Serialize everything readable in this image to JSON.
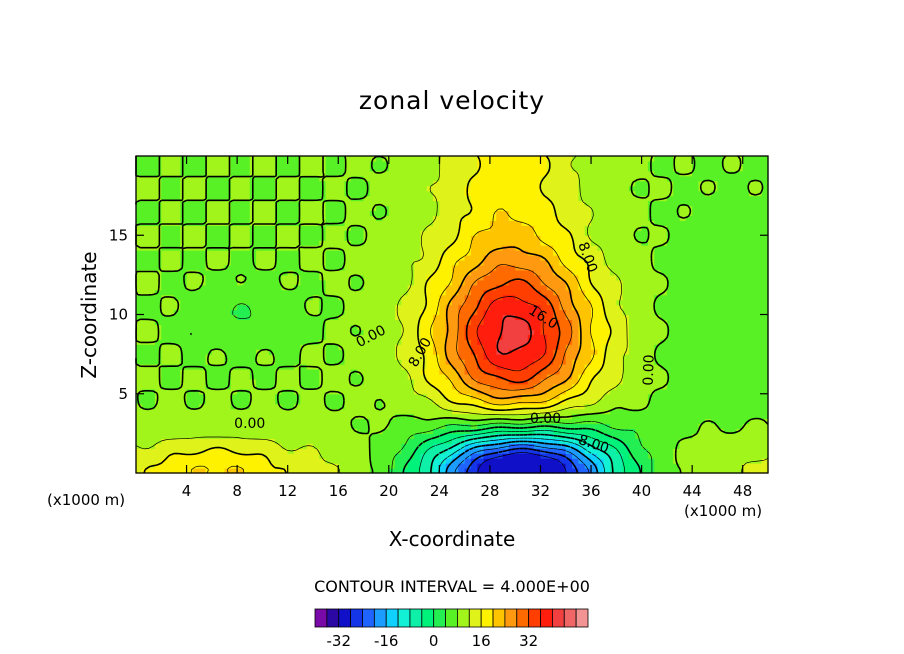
{
  "chart_data": {
    "type": "heatmap",
    "title": "zonal velocity",
    "xlabel": "X-coordinate",
    "ylabel": "Z-coordinate",
    "x_unit_label": "(x1000 m)",
    "xlim": [
      0,
      50
    ],
    "ylim": [
      0,
      20
    ],
    "x_ticks": [
      4,
      8,
      12,
      16,
      20,
      24,
      28,
      32,
      36,
      40,
      44,
      48
    ],
    "x_tick_labels": [
      "4",
      "8",
      "12",
      "16",
      "20",
      "24",
      "28",
      "32",
      "36",
      "40",
      "44",
      "48"
    ],
    "y_ticks": [
      5,
      10,
      15
    ],
    "y_tick_labels": [
      "5",
      "10",
      "15"
    ],
    "contour_interval_text": "CONTOUR INTERVAL = 4.000E+00",
    "contour_labels": [
      {
        "text": "0.00",
        "x": 18.6,
        "z": 8.6,
        "angle": -28
      },
      {
        "text": "8.00",
        "x": 22.5,
        "z": 7.6,
        "angle": -60
      },
      {
        "text": "8.00",
        "x": 35.7,
        "z": 13.6,
        "angle": 70
      },
      {
        "text": "16.0",
        "x": 32.2,
        "z": 9.8,
        "angle": 32
      },
      {
        "text": "0.00",
        "x": 40.6,
        "z": 6.5,
        "angle": -88
      },
      {
        "text": "0.00",
        "x": 9.0,
        "z": 3.1,
        "angle": 0
      },
      {
        "text": "0.00",
        "x": 32.4,
        "z": 3.4,
        "angle": 0
      },
      {
        "text": "8.00",
        "x": 36.2,
        "z": 1.8,
        "angle": 18
      }
    ],
    "colorbar": {
      "levels": [
        -36,
        -32,
        -28,
        -24,
        -20,
        -16,
        -12,
        -8,
        -4,
        0,
        4,
        8,
        12,
        16,
        20,
        24,
        28,
        32,
        36
      ],
      "tick_labels": [
        "-32",
        "-16",
        "0",
        "16",
        "32"
      ],
      "colors": [
        "#7a0aa8",
        "#2b07a4",
        "#1010c8",
        "#1535e8",
        "#1f64ff",
        "#1c9cff",
        "#0fd0ff",
        "#12f0d6",
        "#0ef0a8",
        "#00f27a",
        "#23ee52",
        "#58f126",
        "#a2f51a",
        "#dff31a",
        "#fff200",
        "#ffc400",
        "#ff9a10",
        "#ff6a00",
        "#ff3e00",
        "#ff1e0e",
        "#f24040",
        "#f06666",
        "#f39494"
      ]
    },
    "legend_position": "bottom",
    "grid": false
  }
}
